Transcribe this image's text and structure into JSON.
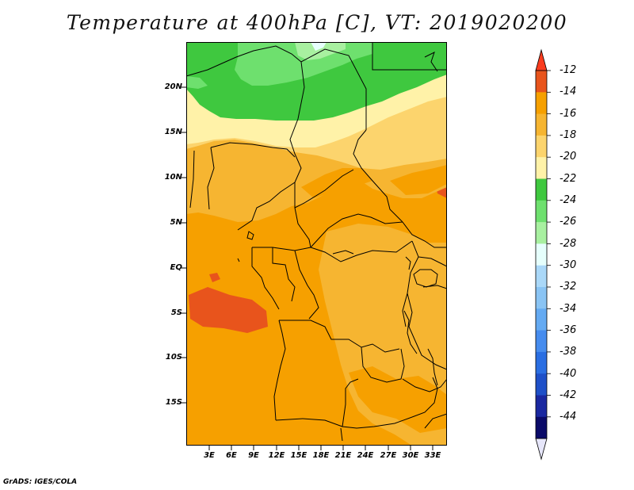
{
  "title": "Temperature at 400hPa [C], VT: 2019020200",
  "credit": "GrADS: IGES/COLA",
  "map": {
    "lat_labels": [
      "20N",
      "15N",
      "10N",
      "5N",
      "EQ",
      "5S",
      "10S",
      "15S"
    ],
    "lon_labels": [
      "3E",
      "6E",
      "9E",
      "12E",
      "15E",
      "18E",
      "21E",
      "24E",
      "27E",
      "30E",
      "33E"
    ]
  },
  "colorbar": {
    "labels": [
      "-12",
      "-14",
      "-16",
      "-18",
      "-20",
      "-22",
      "-24",
      "-26",
      "-28",
      "-30",
      "-32",
      "-34",
      "-36",
      "-38",
      "-40",
      "-42",
      "-44"
    ],
    "colors": [
      "#e8541c",
      "#f6a000",
      "#f6b531",
      "#fcd46d",
      "#fff2a8",
      "#3fc83f",
      "#6ee06e",
      "#a8f0a0",
      "#e6fffc",
      "#aad8f8",
      "#8ac4f4",
      "#64aaf2",
      "#468cee",
      "#2a6ee2",
      "#1e50c8",
      "#1a28a0",
      "#0a0a68"
    ],
    "top_arrow_color": "#fa3c1e",
    "bottom_arrow_color": "#e6e6fa"
  }
}
